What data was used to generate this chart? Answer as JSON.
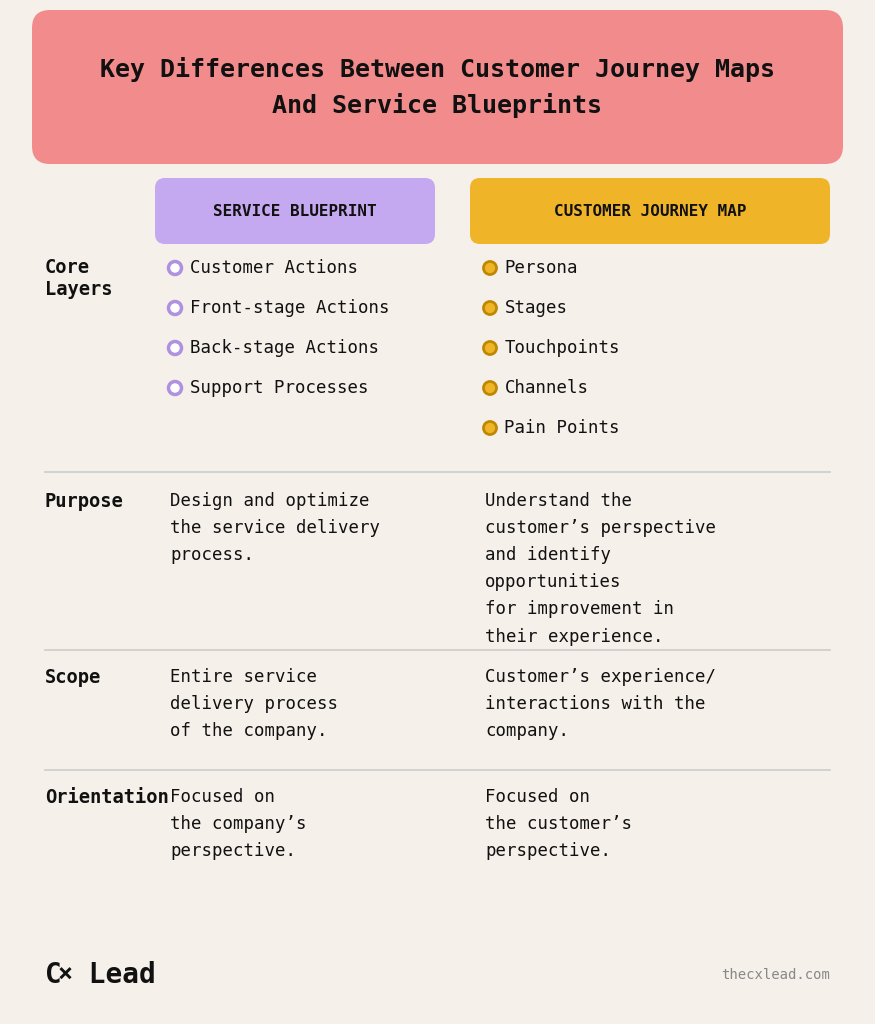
{
  "bg_color": "#f5f0ea",
  "title_text": "Key Differences Between Customer Journey Maps\nAnd Service Blueprints",
  "title_bg": "#f28b8b",
  "title_border": "#e07070",
  "col1_header": "SERVICE BLUEPRINT",
  "col1_bg": "#c4a8f0",
  "col1_border": "#9070c0",
  "col2_header": "CUSTOMER JOURNEY MAP",
  "col2_bg": "#f0b429",
  "col2_border": "#c08800",
  "row_label_color": "#111111",
  "row_labels": [
    "Core\nLayers",
    "Purpose",
    "Scope",
    "Orientation"
  ],
  "col1_items_core": [
    "Customer Actions",
    "Front-stage Actions",
    "Back-stage Actions",
    "Support Processes"
  ],
  "col2_items_core": [
    "Persona",
    "Stages",
    "Touchpoints",
    "Channels",
    "Pain Points"
  ],
  "col1_bullet_color_face": "#ffffff",
  "col1_bullet_color_edge": "#b090e0",
  "col2_bullet_color_face": "#f0b429",
  "col2_bullet_color_edge": "#c08800",
  "purpose_col1": "Design and optimize\nthe service delivery\nprocess.",
  "purpose_col2": "Understand the\ncustomer’s perspective\nand identify\nopportunities\nfor improvement in\ntheir experience.",
  "scope_col1": "Entire service\ndelivery process\nof the company.",
  "scope_col2": "Customer’s experience/\ninteractions with the\ncompany.",
  "orientation_col1": "Focused on\nthe company’s\nperspective.",
  "orientation_col2": "Focused on\nthe customer’s\nperspective.",
  "divider_color": "#cccccc",
  "font_mono": "monospace",
  "logo_cx": "C",
  "logo_x": "×",
  "logo_lead": " Lead",
  "watermark_text": "thecxlead.com",
  "text_color": "#111111"
}
